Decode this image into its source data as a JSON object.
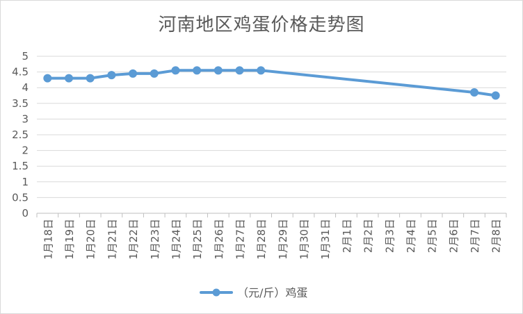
{
  "chart_data": {
    "type": "line",
    "title": "河南地区鸡蛋价格走势图",
    "categories": [
      "1月18日",
      "1月19日",
      "1月20日",
      "1月21日",
      "1月22日",
      "1月23日",
      "1月24日",
      "1月25日",
      "1月26日",
      "1月27日",
      "1月28日",
      "1月29日",
      "1月30日",
      "1月31日",
      "2月1日",
      "2月2日",
      "2月3日",
      "2月4日",
      "2月5日",
      "2月6日",
      "2月7日",
      "2月8日"
    ],
    "series": [
      {
        "name": "（元/斤）鸡蛋",
        "color": "#5b9bd5",
        "values": [
          4.3,
          4.3,
          4.3,
          4.4,
          4.45,
          4.45,
          4.55,
          4.55,
          4.55,
          4.55,
          4.55,
          null,
          null,
          null,
          null,
          null,
          null,
          null,
          null,
          null,
          3.85,
          3.75
        ]
      }
    ],
    "ylim": [
      0,
      5
    ],
    "yticks": [
      "0",
      "0.5",
      "1",
      "1.5",
      "2",
      "2.5",
      "3",
      "3.5",
      "4",
      "4.5",
      "5"
    ],
    "grid": true,
    "legend_position": "bottom",
    "gap_mode": "connect"
  }
}
